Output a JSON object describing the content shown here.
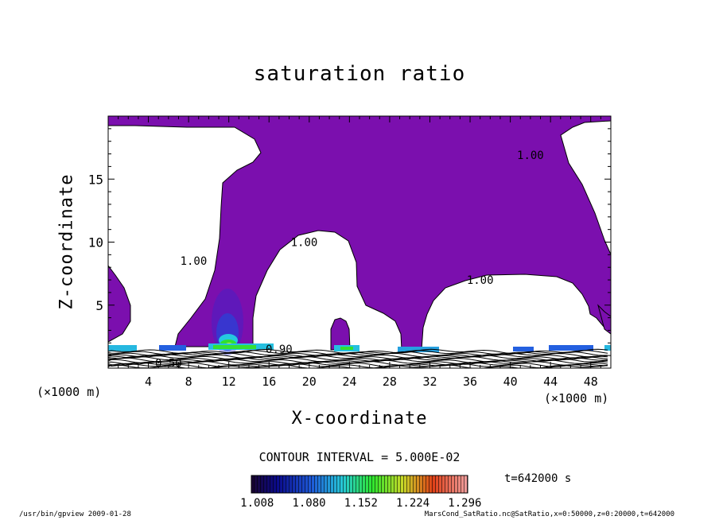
{
  "chart_data": {
    "type": "contour",
    "title": "saturation ratio",
    "xlabel": "X-coordinate",
    "ylabel": "Z-coordinate",
    "x_unit": "(×1000 m)",
    "y_unit": "(×1000 m)",
    "xlim": [
      0,
      50
    ],
    "ylim": [
      0,
      20
    ],
    "x_ticks": [
      4,
      8,
      12,
      16,
      20,
      24,
      28,
      32,
      36,
      40,
      44,
      48
    ],
    "y_ticks": [
      5,
      10,
      15
    ],
    "contour_labels": [
      {
        "text": "1.00",
        "x": 42,
        "z": 16.6
      },
      {
        "text": "1.00",
        "x": 19.5,
        "z": 9.7
      },
      {
        "text": "1.00",
        "x": 8.5,
        "z": 8.2
      },
      {
        "text": "1.00",
        "x": 37,
        "z": 6.7
      },
      {
        "text": "0.90",
        "x": 17,
        "z": 1.2
      },
      {
        "text": "0.50",
        "x": 6,
        "z": 0.1
      }
    ],
    "fill_color": "#7b0fae",
    "contour_interval": "CONTOUR INTERVAL = 5.000E-02",
    "colorbar": {
      "ticks": [
        "1.008",
        "1.080",
        "1.152",
        "1.224",
        "1.296"
      ],
      "vmin": 1.0,
      "vmax": 1.3
    },
    "time_label": "t=642000  s",
    "footer_left": "/usr/bin/gpview   2009-01-28",
    "footer_right": "MarsCond_SatRatio.nc@SatRatio,x=0:50000,z=0:20000,t=642000"
  }
}
